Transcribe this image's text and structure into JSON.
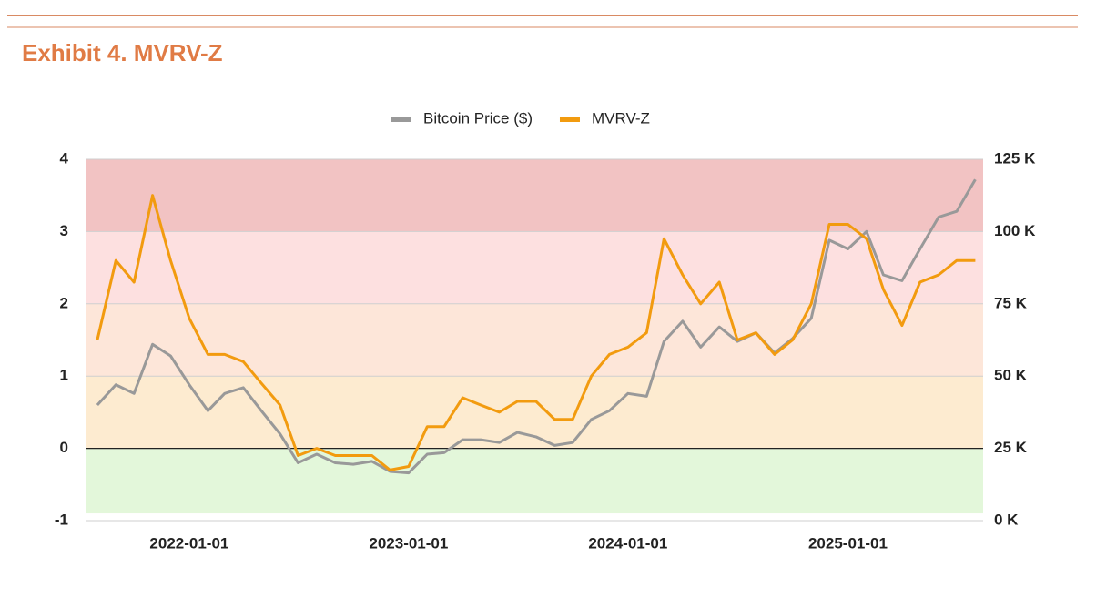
{
  "chart_data": {
    "type": "line",
    "title": "Exhibit 4. MVRV-Z",
    "x": [
      "2021-08-01",
      "2021-09-01",
      "2021-10-01",
      "2021-11-01",
      "2021-12-01",
      "2022-01-01",
      "2022-02-01",
      "2022-03-01",
      "2022-04-01",
      "2022-05-01",
      "2022-06-01",
      "2022-07-01",
      "2022-08-01",
      "2022-09-01",
      "2022-10-01",
      "2022-11-01",
      "2022-12-01",
      "2023-01-01",
      "2023-02-01",
      "2023-03-01",
      "2023-04-01",
      "2023-05-01",
      "2023-06-01",
      "2023-07-01",
      "2023-08-01",
      "2023-09-01",
      "2023-10-01",
      "2023-11-01",
      "2023-12-01",
      "2024-01-01",
      "2024-02-01",
      "2024-03-01",
      "2024-04-01",
      "2024-05-01",
      "2024-06-01",
      "2024-07-01",
      "2024-08-01",
      "2024-09-01",
      "2024-10-01",
      "2024-11-01",
      "2024-12-01",
      "2025-01-01",
      "2025-02-01",
      "2025-03-01",
      "2025-04-01",
      "2025-05-01",
      "2025-06-01",
      "2025-07-01",
      "2025-08-01"
    ],
    "series": [
      {
        "name": "Bitcoin Price ($)",
        "color": "#999999",
        "axis": "y2",
        "values": [
          40000,
          47000,
          44000,
          61000,
          57000,
          47000,
          38000,
          44000,
          46000,
          38000,
          30000,
          20000,
          23000,
          20000,
          19500,
          20500,
          17000,
          16500,
          23000,
          23500,
          28000,
          28000,
          27000,
          30500,
          29000,
          26000,
          27000,
          35000,
          38000,
          44000,
          43000,
          62000,
          69000,
          60000,
          67000,
          62000,
          65000,
          58000,
          63000,
          70000,
          97000,
          94000,
          100000,
          85000,
          83000,
          94000,
          105000,
          107000,
          118000
        ]
      },
      {
        "name": "MVRV-Z",
        "color": "#f29b0f",
        "values": [
          1.5,
          2.6,
          2.3,
          3.5,
          2.6,
          1.8,
          1.3,
          1.3,
          1.2,
          0.9,
          0.6,
          -0.1,
          0.0,
          -0.1,
          -0.1,
          -0.1,
          -0.3,
          -0.25,
          0.3,
          0.3,
          0.7,
          0.6,
          0.5,
          0.65,
          0.65,
          0.4,
          0.4,
          1.0,
          1.3,
          1.4,
          1.6,
          2.9,
          2.4,
          2.0,
          2.3,
          1.5,
          1.6,
          1.3,
          1.5,
          2.0,
          3.1,
          3.1,
          2.9,
          2.2,
          1.7,
          2.3,
          2.4,
          2.6,
          2.6
        ]
      }
    ],
    "xlim": [
      "2021-07-14",
      "2025-08-14"
    ],
    "xticks": [
      "2022-01-01",
      "2023-01-01",
      "2024-01-01",
      "2025-01-01"
    ],
    "ylim": [
      -1,
      4
    ],
    "yticks": [
      -1,
      0,
      1,
      2,
      3,
      4
    ],
    "y2lim": [
      0,
      125000
    ],
    "y2ticks": [
      {
        "value": 0,
        "label": "0 K"
      },
      {
        "value": 25000,
        "label": "25 K"
      },
      {
        "value": 50000,
        "label": "50 K"
      },
      {
        "value": 75000,
        "label": "75 K"
      },
      {
        "value": 100000,
        "label": "100 K"
      },
      {
        "value": 125000,
        "label": "125 K"
      }
    ],
    "bands": [
      {
        "from": 3,
        "to": 4,
        "color": "#f2c3c3"
      },
      {
        "from": 2,
        "to": 3,
        "color": "#fde0e0"
      },
      {
        "from": 1,
        "to": 2,
        "color": "#fde6d9"
      },
      {
        "from": 0,
        "to": 1,
        "color": "#fdebd0"
      },
      {
        "from": -0.9,
        "to": 0,
        "color": "#e3f7da"
      }
    ],
    "zero_line": 0,
    "grid": true,
    "legend": "top"
  }
}
